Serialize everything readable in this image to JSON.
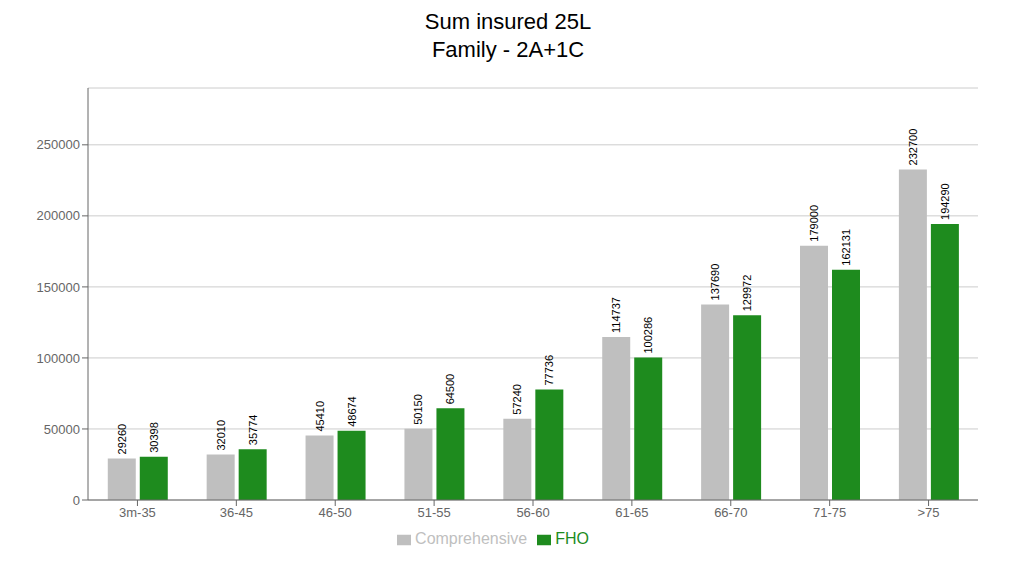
{
  "chart_data": {
    "type": "bar",
    "title": "Sum insured 25L\nFamily - 2A+1C",
    "categories": [
      "3m-35",
      "36-45",
      "46-50",
      "51-55",
      "56-60",
      "61-65",
      "66-70",
      "71-75",
      ">75"
    ],
    "series": [
      {
        "name": "Comprehensive",
        "color": "#bfbfbf",
        "values": [
          29260,
          32010,
          45410,
          50150,
          57240,
          114737,
          137690,
          179000,
          232700
        ]
      },
      {
        "name": "FHO",
        "color": "#1e8b1e",
        "values": [
          30398,
          35774,
          48674,
          64500,
          77736,
          100286,
          129972,
          162131,
          194290
        ]
      }
    ],
    "ylim": [
      0,
      290000
    ],
    "yticks": [
      0,
      50000,
      100000,
      150000,
      200000,
      250000
    ],
    "grid": true,
    "legend": "bottom",
    "data_labels": true
  }
}
